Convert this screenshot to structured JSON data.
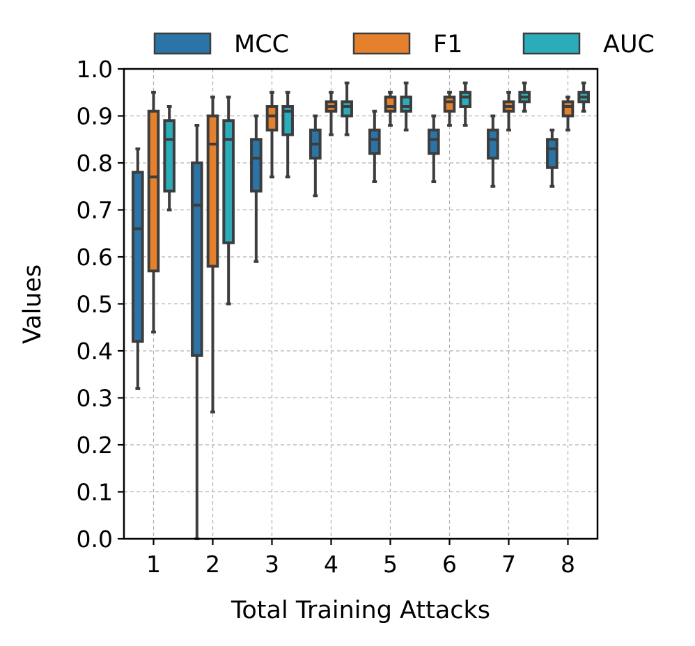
{
  "chart_data": {
    "type": "box",
    "title": "",
    "xlabel": "Total Training Attacks",
    "ylabel": "Values",
    "categories": [
      "1",
      "2",
      "3",
      "4",
      "5",
      "6",
      "7",
      "8"
    ],
    "ylim": [
      0.0,
      1.0
    ],
    "yticks": [
      "0.0",
      "0.1",
      "0.2",
      "0.3",
      "0.4",
      "0.5",
      "0.6",
      "0.7",
      "0.8",
      "0.9",
      "1.0"
    ],
    "grid": true,
    "legend_position": "top",
    "series": [
      {
        "name": "MCC",
        "color": "#2a74a8",
        "boxes": [
          {
            "whislo": 0.32,
            "q1": 0.42,
            "med": 0.66,
            "q3": 0.78,
            "whishi": 0.83
          },
          {
            "whislo": 0.0,
            "q1": 0.39,
            "med": 0.71,
            "q3": 0.8,
            "whishi": 0.88
          },
          {
            "whislo": 0.59,
            "q1": 0.74,
            "med": 0.81,
            "q3": 0.85,
            "whishi": 0.9
          },
          {
            "whislo": 0.73,
            "q1": 0.81,
            "med": 0.84,
            "q3": 0.87,
            "whishi": 0.9
          },
          {
            "whislo": 0.76,
            "q1": 0.82,
            "med": 0.85,
            "q3": 0.87,
            "whishi": 0.91
          },
          {
            "whislo": 0.76,
            "q1": 0.82,
            "med": 0.85,
            "q3": 0.87,
            "whishi": 0.9
          },
          {
            "whislo": 0.75,
            "q1": 0.81,
            "med": 0.85,
            "q3": 0.87,
            "whishi": 0.9
          },
          {
            "whislo": 0.75,
            "q1": 0.79,
            "med": 0.83,
            "q3": 0.85,
            "whishi": 0.87
          }
        ]
      },
      {
        "name": "F1",
        "color": "#e5812d",
        "boxes": [
          {
            "whislo": 0.44,
            "q1": 0.57,
            "med": 0.77,
            "q3": 0.91,
            "whishi": 0.95
          },
          {
            "whislo": 0.27,
            "q1": 0.58,
            "med": 0.84,
            "q3": 0.9,
            "whishi": 0.94
          },
          {
            "whislo": 0.77,
            "q1": 0.87,
            "med": 0.9,
            "q3": 0.92,
            "whishi": 0.95
          },
          {
            "whislo": 0.86,
            "q1": 0.91,
            "med": 0.92,
            "q3": 0.93,
            "whishi": 0.95
          },
          {
            "whislo": 0.88,
            "q1": 0.91,
            "med": 0.92,
            "q3": 0.94,
            "whishi": 0.95
          },
          {
            "whislo": 0.88,
            "q1": 0.91,
            "med": 0.93,
            "q3": 0.94,
            "whishi": 0.95
          },
          {
            "whislo": 0.87,
            "q1": 0.91,
            "med": 0.92,
            "q3": 0.93,
            "whishi": 0.95
          },
          {
            "whislo": 0.87,
            "q1": 0.9,
            "med": 0.92,
            "q3": 0.93,
            "whishi": 0.94
          }
        ]
      },
      {
        "name": "AUC",
        "color": "#2bacbb",
        "boxes": [
          {
            "whislo": 0.7,
            "q1": 0.74,
            "med": 0.85,
            "q3": 0.89,
            "whishi": 0.92
          },
          {
            "whislo": 0.5,
            "q1": 0.63,
            "med": 0.85,
            "q3": 0.89,
            "whishi": 0.94
          },
          {
            "whislo": 0.77,
            "q1": 0.86,
            "med": 0.91,
            "q3": 0.92,
            "whishi": 0.95
          },
          {
            "whislo": 0.86,
            "q1": 0.9,
            "med": 0.92,
            "q3": 0.93,
            "whishi": 0.97
          },
          {
            "whislo": 0.87,
            "q1": 0.91,
            "med": 0.92,
            "q3": 0.94,
            "whishi": 0.97
          },
          {
            "whislo": 0.88,
            "q1": 0.92,
            "med": 0.94,
            "q3": 0.95,
            "whishi": 0.97
          },
          {
            "whislo": 0.91,
            "q1": 0.93,
            "med": 0.94,
            "q3": 0.95,
            "whishi": 0.97
          },
          {
            "whislo": 0.91,
            "q1": 0.93,
            "med": 0.94,
            "q3": 0.95,
            "whishi": 0.97
          }
        ]
      }
    ]
  }
}
